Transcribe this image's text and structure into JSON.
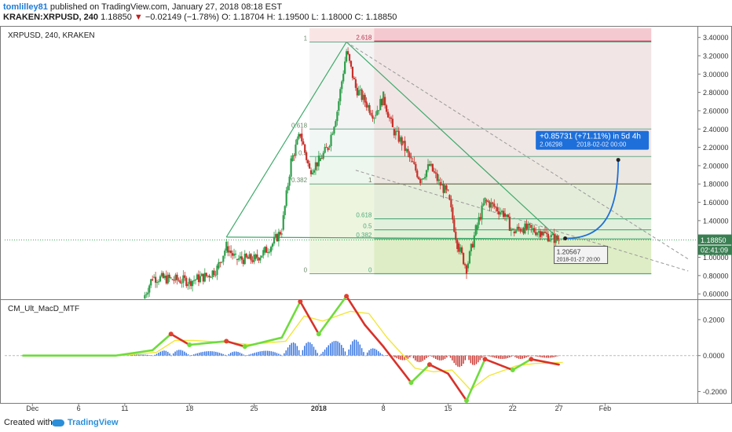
{
  "header": {
    "author": "tomlilley81",
    "published_text": " published on TradingView.com, January 27, 2018 08:18 EST",
    "symbol_line": "KRAKEN:XRPUSD, 240",
    "last": "1.18850",
    "change": "−0.02149 (−1.78%)",
    "ohlc": "O: 1.18704  H: 1.19500  L: 1.18000  C: 1.18850"
  },
  "chart_title": "XRPUSD, 240, KRAKEN",
  "indicator_title": "CM_Ult_MacD_MTF",
  "colors": {
    "up": "#2e9e4a",
    "down": "#c8312b",
    "accent": "#1e6fd9",
    "fib_top": "#b2334d",
    "trend_green": "#3faa6b"
  },
  "chart_data": [
    {
      "type": "candlestick",
      "title": "XRPUSD, 240, KRAKEN",
      "y_axis": {
        "range": [
          0.55,
          3.5
        ],
        "ticks": [
          0.6,
          0.8,
          1.0,
          1.2,
          1.4,
          1.6,
          1.8,
          2.0,
          2.2,
          2.4,
          2.6,
          2.8,
          3.0,
          3.2,
          3.4
        ],
        "tick_labels": [
          "0.60000",
          "0.80000",
          "1.00000",
          "1.20000",
          "1.40000",
          "1.60000",
          "1.80000",
          "2.00000",
          "2.20000",
          "2.40000",
          "2.60000",
          "2.80000",
          "3.00000",
          "3.20000",
          "3.40000"
        ]
      },
      "x_axis": {
        "tick_labels": [
          "Dec",
          "6",
          "11",
          "18",
          "25",
          "2018",
          "8",
          "15",
          "22",
          "27",
          "Feb"
        ],
        "tick_dates": [
          "2017-12-01",
          "2017-12-06",
          "2017-12-11",
          "2017-12-18",
          "2017-12-25",
          "2018-01-01",
          "2018-01-08",
          "2018-01-15",
          "2018-01-22",
          "2018-01-27",
          "2018-02-01"
        ]
      },
      "price_path": [
        [
          "2017-12-13",
          0.55
        ],
        [
          "2017-12-14",
          0.78
        ],
        [
          "2017-12-16",
          0.76
        ],
        [
          "2017-12-18",
          0.74
        ],
        [
          "2017-12-20",
          0.8
        ],
        [
          "2017-12-21",
          0.88
        ],
        [
          "2017-12-22",
          1.12
        ],
        [
          "2017-12-23",
          0.98
        ],
        [
          "2017-12-25",
          0.98
        ],
        [
          "2017-12-26",
          1.05
        ],
        [
          "2017-12-27",
          1.15
        ],
        [
          "2017-12-28",
          1.3
        ],
        [
          "2017-12-29",
          2.05
        ],
        [
          "2017-12-30",
          2.35
        ],
        [
          "2017-12-31",
          1.95
        ],
        [
          "2018-01-01",
          2.05
        ],
        [
          "2018-01-02",
          2.2
        ],
        [
          "2018-01-03",
          2.6
        ],
        [
          "2018-01-04",
          3.25
        ],
        [
          "2018-01-05",
          2.85
        ],
        [
          "2018-01-06",
          2.7
        ],
        [
          "2018-01-07",
          2.55
        ],
        [
          "2018-01-08",
          2.75
        ],
        [
          "2018-01-09",
          2.4
        ],
        [
          "2018-01-10",
          2.25
        ],
        [
          "2018-01-11",
          2.05
        ],
        [
          "2018-01-12",
          1.85
        ],
        [
          "2018-01-13",
          2.0
        ],
        [
          "2018-01-14",
          1.82
        ],
        [
          "2018-01-15",
          1.68
        ],
        [
          "2018-01-16",
          1.15
        ],
        [
          "2018-01-17",
          0.88
        ],
        [
          "2018-01-18",
          1.3
        ],
        [
          "2018-01-19",
          1.62
        ],
        [
          "2018-01-20",
          1.55
        ],
        [
          "2018-01-21",
          1.48
        ],
        [
          "2018-01-22",
          1.28
        ],
        [
          "2018-01-23",
          1.32
        ],
        [
          "2018-01-24",
          1.3
        ],
        [
          "2018-01-25",
          1.28
        ],
        [
          "2018-01-26",
          1.22
        ],
        [
          "2018-01-27",
          1.1885
        ]
      ],
      "fib_left": {
        "start_date": "2017-12-31",
        "end_date": "2018-02-06",
        "levels": [
          {
            "ratio": "0",
            "price": 0.82
          },
          {
            "ratio": "0.382",
            "price": 1.8
          },
          {
            "ratio": "0.5",
            "price": 2.1
          },
          {
            "ratio": "0.618",
            "price": 2.4
          },
          {
            "ratio": "1",
            "price": 3.35
          }
        ]
      },
      "fib_right": {
        "start_date": "2018-01-07",
        "end_date": "2018-02-06",
        "levels": [
          {
            "ratio": "0",
            "price": 0.82
          },
          {
            "ratio": "0.382",
            "price": 1.2
          },
          {
            "ratio": "0.5",
            "price": 1.3
          },
          {
            "ratio": "0.618",
            "price": 1.42
          },
          {
            "ratio": "1",
            "price": 1.8
          },
          {
            "ratio": "2.618",
            "price": 3.36
          }
        ]
      },
      "projection": {
        "label": "+0.85731 (+71.11%) in 5d 4h",
        "sub_label": "2.06298",
        "sub_date": "2018-02-02  00:00",
        "from": {
          "date": "2018-01-27",
          "price": 1.20567
        },
        "to": {
          "date": "2018-02-02",
          "price": 2.06298
        },
        "from_label": "1.20567",
        "from_date_label": "2018-01-27 20:00"
      },
      "current_price_label": "1.18850",
      "countdown_label": "02:41:09"
    },
    {
      "type": "line",
      "title": "CM_Ult_MacD_MTF",
      "y_axis": {
        "range": [
          -0.25,
          0.3
        ],
        "ticks": [
          0.2,
          0.0,
          -0.2
        ],
        "tick_labels": [
          "0.2000",
          "0.0000",
          "-0.2000"
        ]
      },
      "series": [
        {
          "values": [
            [
              "2017-11-30",
              0.0
            ],
            [
              "2017-12-10",
              0.0
            ],
            [
              "2017-12-14",
              0.03
            ],
            [
              "2017-12-16",
              0.12
            ],
            [
              "2017-12-18",
              0.06
            ],
            [
              "2017-12-22",
              0.08
            ],
            [
              "2017-12-24",
              0.05
            ],
            [
              "2017-12-28",
              0.1
            ],
            [
              "2017-12-30",
              0.3
            ],
            [
              "2018-01-01",
              0.12
            ],
            [
              "2018-01-04",
              0.33
            ],
            [
              "2018-01-06",
              0.17
            ],
            [
              "2018-01-08",
              0.05
            ],
            [
              "2018-01-11",
              -0.15
            ],
            [
              "2018-01-13",
              -0.05
            ],
            [
              "2018-01-15",
              -0.1
            ],
            [
              "2018-01-17",
              -0.25
            ],
            [
              "2018-01-19",
              -0.02
            ],
            [
              "2018-01-22",
              -0.08
            ],
            [
              "2018-01-24",
              -0.02
            ],
            [
              "2018-01-27",
              -0.05
            ]
          ]
        }
      ]
    }
  ]
}
